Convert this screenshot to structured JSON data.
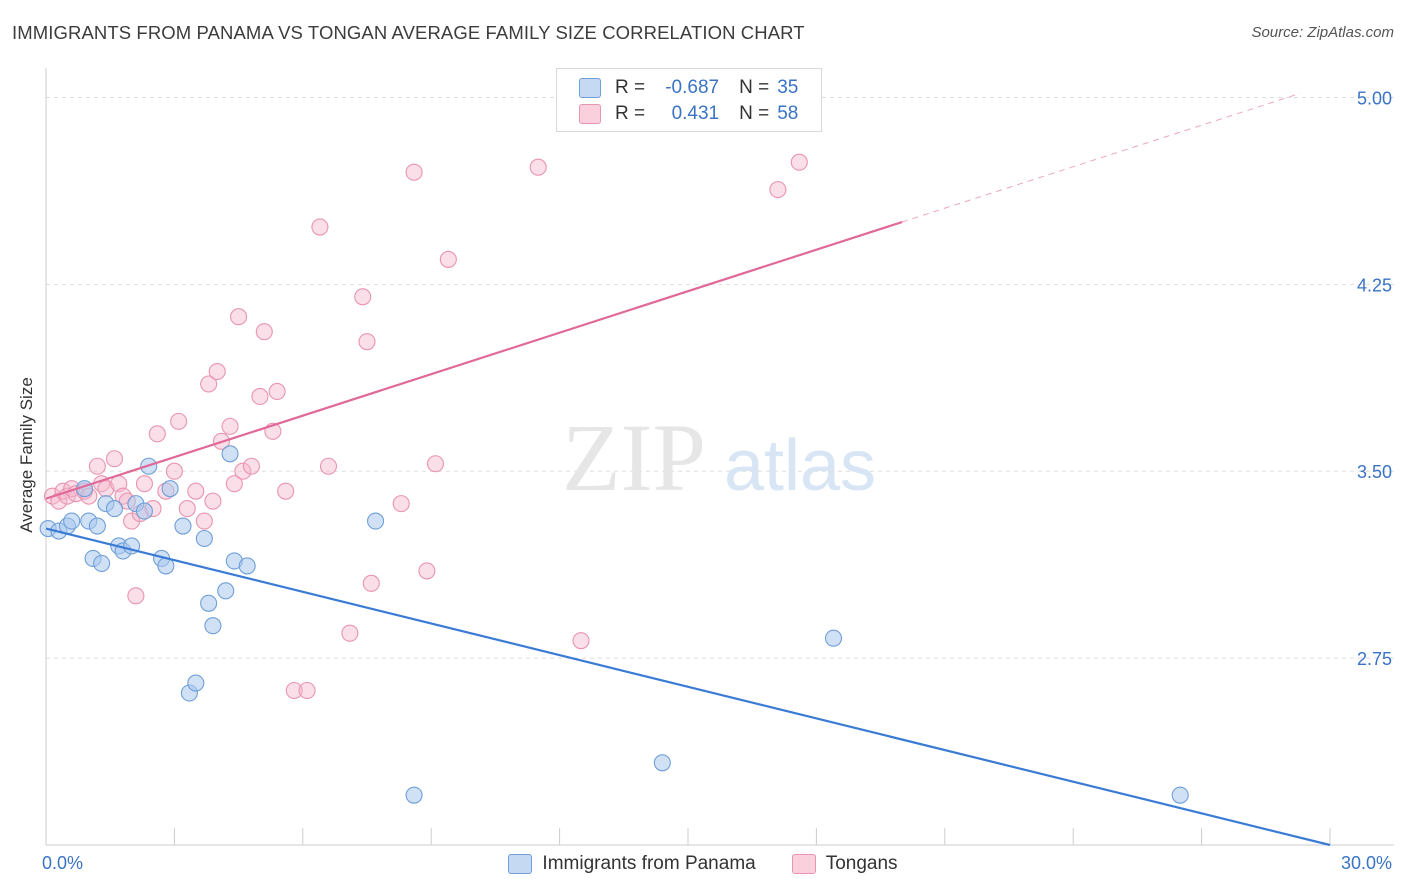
{
  "header": {
    "title": "IMMIGRANTS FROM PANAMA VS TONGAN AVERAGE FAMILY SIZE CORRELATION CHART",
    "source": "Source: ZipAtlas.com"
  },
  "watermark": {
    "zip": "ZIP",
    "atlas": "atlas"
  },
  "stats_legend": [
    {
      "r_label": "R =",
      "r_value": "-0.687",
      "n_label": "N =",
      "n_value": "35"
    },
    {
      "r_label": "R =",
      "r_value": "0.431",
      "n_label": "N =",
      "n_value": "58"
    }
  ],
  "colors": {
    "blue_fill": "#aac8ee",
    "blue_stroke": "#6f9fd8",
    "blue_line": "#3a7bd5",
    "pink_fill": "#f6b8cb",
    "pink_stroke": "#e994b0",
    "pink_line": "#e0699a",
    "axis_label": "#3a73c6",
    "grid": "#dddddd"
  },
  "chart_data": {
    "type": "scatter",
    "title": "IMMIGRANTS FROM PANAMA VS TONGAN AVERAGE FAMILY SIZE CORRELATION CHART",
    "xlabel": "",
    "ylabel": "Average Family Size",
    "xlim": [
      0,
      30
    ],
    "ylim": [
      2.0,
      5.07
    ],
    "x_tick_labels": [
      "0.0%",
      "30.0%"
    ],
    "y_ticks": [
      2.75,
      3.5,
      4.25,
      5.0
    ],
    "y_tick_labels": [
      "2.75",
      "3.50",
      "4.25",
      "5.00"
    ],
    "grid": true,
    "legend_position": "bottom-center",
    "series": [
      {
        "name": "Immigrants from Panama",
        "color": "#aac8ee",
        "points": [
          [
            0.05,
            3.27
          ],
          [
            0.3,
            3.26
          ],
          [
            0.5,
            3.28
          ],
          [
            0.6,
            3.3
          ],
          [
            0.9,
            3.43
          ],
          [
            1.0,
            3.3
          ],
          [
            1.1,
            3.15
          ],
          [
            1.2,
            3.28
          ],
          [
            1.3,
            3.13
          ],
          [
            1.4,
            3.37
          ],
          [
            1.6,
            3.35
          ],
          [
            1.7,
            3.2
          ],
          [
            1.8,
            3.18
          ],
          [
            2.0,
            3.2
          ],
          [
            2.1,
            3.37
          ],
          [
            2.3,
            3.34
          ],
          [
            2.4,
            3.52
          ],
          [
            2.7,
            3.15
          ],
          [
            2.8,
            3.12
          ],
          [
            2.9,
            3.43
          ],
          [
            3.2,
            3.28
          ],
          [
            3.35,
            2.61
          ],
          [
            3.5,
            2.65
          ],
          [
            3.7,
            3.23
          ],
          [
            3.8,
            2.97
          ],
          [
            3.9,
            2.88
          ],
          [
            4.2,
            3.02
          ],
          [
            4.3,
            3.57
          ],
          [
            4.4,
            3.14
          ],
          [
            4.7,
            3.12
          ],
          [
            7.7,
            3.3
          ],
          [
            8.6,
            2.2
          ],
          [
            14.4,
            2.33
          ],
          [
            18.4,
            2.83
          ],
          [
            26.5,
            2.2
          ]
        ]
      },
      {
        "name": "Tongans",
        "color": "#f6b8cb",
        "points": [
          [
            0.15,
            3.4
          ],
          [
            0.3,
            3.38
          ],
          [
            0.4,
            3.42
          ],
          [
            0.5,
            3.4
          ],
          [
            0.6,
            3.43
          ],
          [
            0.7,
            3.41
          ],
          [
            0.9,
            3.42
          ],
          [
            1.0,
            3.4
          ],
          [
            1.2,
            3.52
          ],
          [
            1.3,
            3.45
          ],
          [
            1.4,
            3.43
          ],
          [
            1.6,
            3.55
          ],
          [
            1.7,
            3.45
          ],
          [
            1.8,
            3.4
          ],
          [
            1.9,
            3.38
          ],
          [
            2.0,
            3.3
          ],
          [
            2.1,
            3.0
          ],
          [
            2.2,
            3.33
          ],
          [
            2.3,
            3.45
          ],
          [
            2.5,
            3.35
          ],
          [
            2.6,
            3.65
          ],
          [
            2.8,
            3.42
          ],
          [
            3.0,
            3.5
          ],
          [
            3.1,
            3.7
          ],
          [
            3.3,
            3.35
          ],
          [
            3.5,
            3.42
          ],
          [
            3.7,
            3.3
          ],
          [
            3.8,
            3.85
          ],
          [
            3.9,
            3.38
          ],
          [
            4.0,
            3.9
          ],
          [
            4.1,
            3.62
          ],
          [
            4.3,
            3.68
          ],
          [
            4.4,
            3.45
          ],
          [
            4.5,
            4.12
          ],
          [
            4.6,
            3.5
          ],
          [
            4.8,
            3.52
          ],
          [
            5.0,
            3.8
          ],
          [
            5.1,
            4.06
          ],
          [
            5.3,
            3.66
          ],
          [
            5.4,
            3.82
          ],
          [
            5.6,
            3.42
          ],
          [
            5.8,
            2.62
          ],
          [
            6.1,
            2.62
          ],
          [
            6.4,
            4.48
          ],
          [
            6.6,
            3.52
          ],
          [
            7.1,
            2.85
          ],
          [
            7.4,
            4.2
          ],
          [
            7.5,
            4.02
          ],
          [
            7.6,
            3.05
          ],
          [
            8.3,
            3.37
          ],
          [
            8.6,
            4.7
          ],
          [
            8.9,
            3.1
          ],
          [
            9.1,
            3.53
          ],
          [
            9.4,
            4.35
          ],
          [
            11.5,
            4.72
          ],
          [
            12.5,
            2.82
          ],
          [
            17.1,
            4.63
          ],
          [
            17.6,
            4.74
          ]
        ]
      }
    ],
    "trend_lines": [
      {
        "series": "Immigrants from Panama",
        "x": [
          0,
          30
        ],
        "y": [
          3.27,
          2.0
        ]
      },
      {
        "series": "Tongans",
        "x": [
          0,
          20
        ],
        "y": [
          3.39,
          4.5
        ],
        "dashed_extension_x": [
          20,
          29.3
        ]
      }
    ]
  }
}
